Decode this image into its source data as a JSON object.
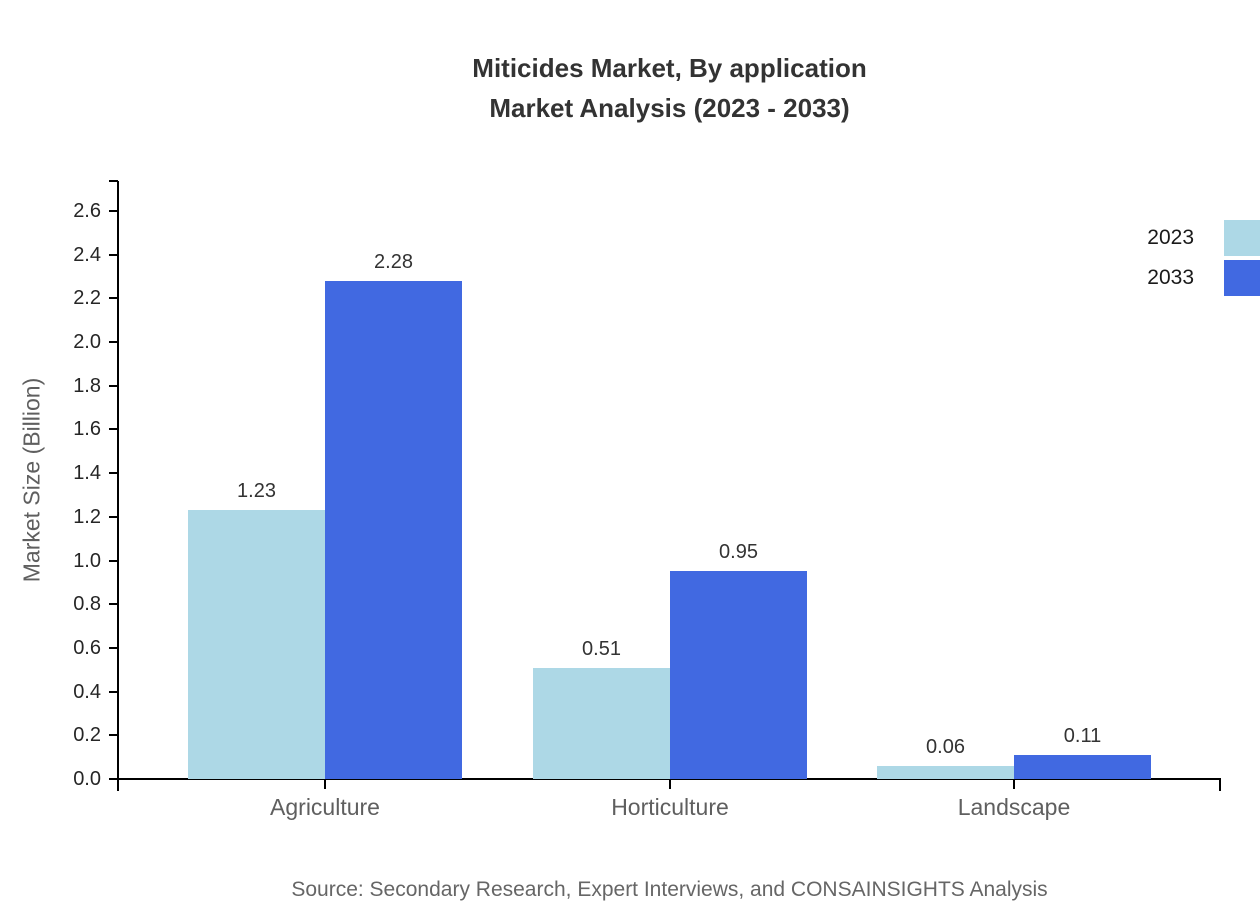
{
  "title": {
    "line1": "Miticides Market, By application",
    "line2": "Market Analysis (2023 - 2033)"
  },
  "source": "Source: Secondary Research, Expert Interviews, and CONSAINSIGHTS Analysis",
  "colors": {
    "series_2023": "#ADD8E6",
    "series_2033": "#4169E1",
    "axis_line": "#000000",
    "tick_label_text": "#262626",
    "category_text": "#5F5F5F",
    "title_text": "#333333",
    "value_label_text": "#333333",
    "source_text": "#666666"
  },
  "legend": {
    "position": "top-right",
    "items": [
      {
        "label": "2023",
        "color": "#ADD8E6"
      },
      {
        "label": "2033",
        "color": "#4169E1"
      }
    ]
  },
  "chart_data": {
    "type": "bar",
    "title": "Miticides Market, By application — Market Analysis (2023 - 2033)",
    "categories": [
      "Agriculture",
      "Horticulture",
      "Landscape"
    ],
    "series": [
      {
        "name": "2023",
        "color": "#ADD8E6",
        "values": [
          1.23,
          0.51,
          0.06
        ],
        "value_labels": [
          "1.23",
          "0.51",
          "0.06"
        ]
      },
      {
        "name": "2033",
        "color": "#4169E1",
        "values": [
          2.28,
          0.95,
          0.11
        ],
        "value_labels": [
          "2.28",
          "0.95",
          "0.11"
        ]
      }
    ],
    "xlabel": "",
    "ylabel": "Market Size (Billion)",
    "ylim": [
      0,
      2.6
    ],
    "ytick_step": 0.2,
    "ytick_labels": [
      "0.0",
      "0.2",
      "0.4",
      "0.6",
      "0.8",
      "1.0",
      "1.2",
      "1.4",
      "1.6",
      "1.8",
      "2.0",
      "2.2",
      "2.4",
      "2.6"
    ],
    "grid": false,
    "legend_position": "top-right"
  }
}
